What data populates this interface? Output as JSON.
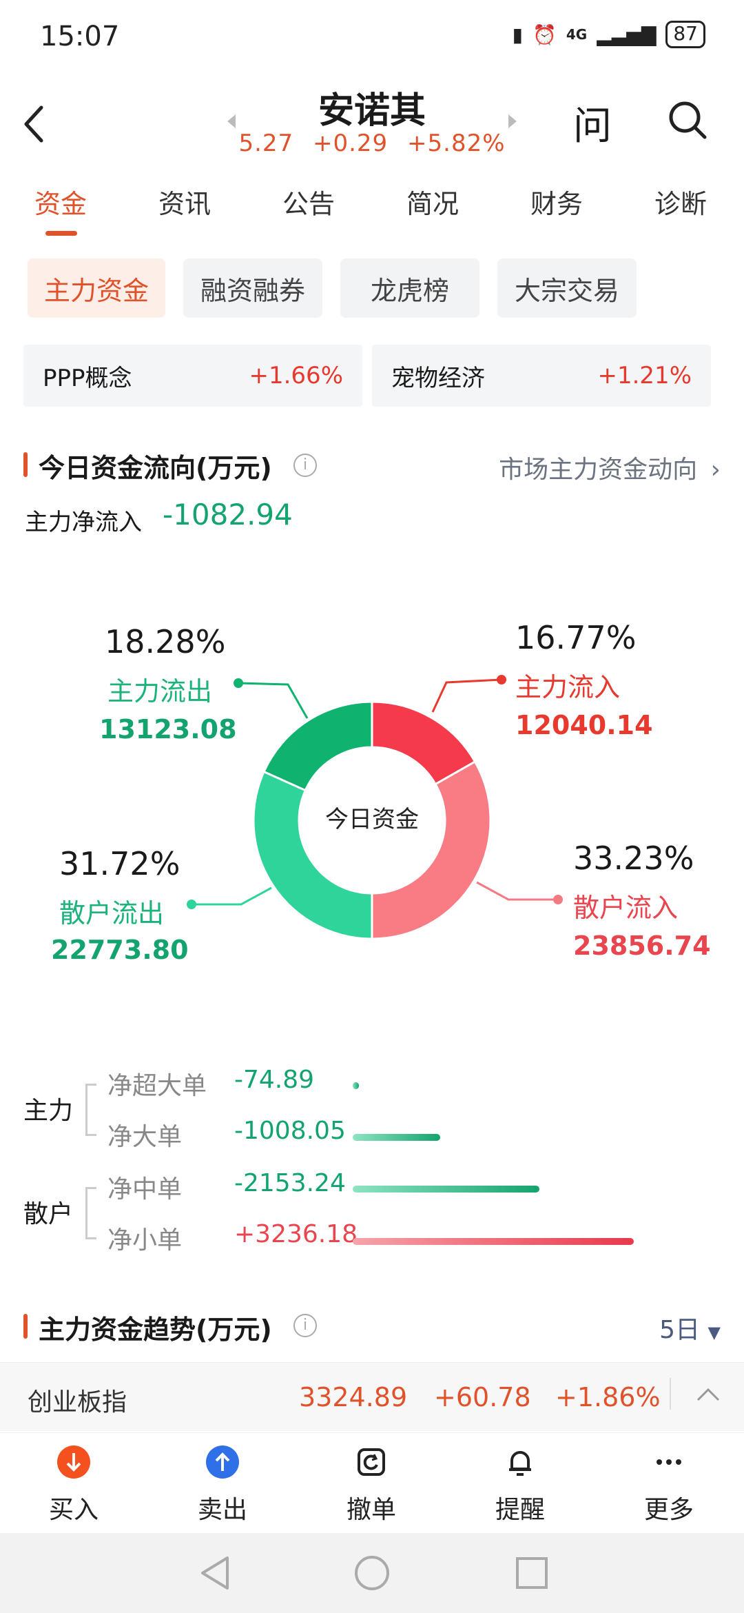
{
  "status_bar": {
    "time": "15:07",
    "network": "4G",
    "battery": "87"
  },
  "header": {
    "title": "安诺其",
    "price": "5.27",
    "change": "+0.29",
    "change_pct": "+5.82%",
    "ask_label": "问"
  },
  "tabs": [
    "资金",
    "资讯",
    "公告",
    "简况",
    "财务",
    "诊断"
  ],
  "sub_tabs": [
    "主力资金",
    "融资融券",
    "龙虎榜",
    "大宗交易"
  ],
  "concepts": [
    {
      "name": "PPP概念",
      "change": "+1.66%"
    },
    {
      "name": "宠物经济",
      "change": "+1.21%"
    }
  ],
  "flow_section": {
    "title": "今日资金流向(万元)",
    "info": "i",
    "market_link": "市场主力资金动向",
    "net_inflow_label": "主力净流入",
    "net_inflow_value": "-1082.94"
  },
  "chart_data": {
    "type": "pie",
    "center_label": "今日资金",
    "slices": [
      {
        "label": "主力流入",
        "pct": "16.77%",
        "value": "12040.14",
        "pct_num": 16.77,
        "color": "#f53b4b"
      },
      {
        "label": "散户流入",
        "pct": "33.23%",
        "value": "23856.74",
        "pct_num": 33.23,
        "color": "#f97b84"
      },
      {
        "label": "散户流出",
        "pct": "31.72%",
        "value": "22773.80",
        "pct_num": 31.72,
        "color": "#2fd49a"
      },
      {
        "label": "主力流出",
        "pct": "18.28%",
        "value": "13123.08",
        "pct_num": 18.28,
        "color": "#0fb26f"
      }
    ]
  },
  "orders": {
    "main_label": "主力",
    "retail_label": "散户",
    "rows": [
      {
        "label": "净超大单",
        "value": "-74.89",
        "amount": -74.89
      },
      {
        "label": "净大单",
        "value": "-1008.05",
        "amount": -1008.05
      },
      {
        "label": "净中单",
        "value": "-2153.24",
        "amount": -2153.24
      },
      {
        "label": "净小单",
        "value": "+3236.18",
        "amount": 3236.18
      }
    ]
  },
  "trend_section": {
    "title": "主力资金趋势(万元)",
    "info": "i",
    "period": "5日"
  },
  "index_bar": {
    "name": "创业板指",
    "value": "3324.89",
    "change": "+60.78",
    "change_pct": "+1.86%"
  },
  "bottom_nav": [
    "买入",
    "卖出",
    "撤单",
    "提醒",
    "更多"
  ]
}
